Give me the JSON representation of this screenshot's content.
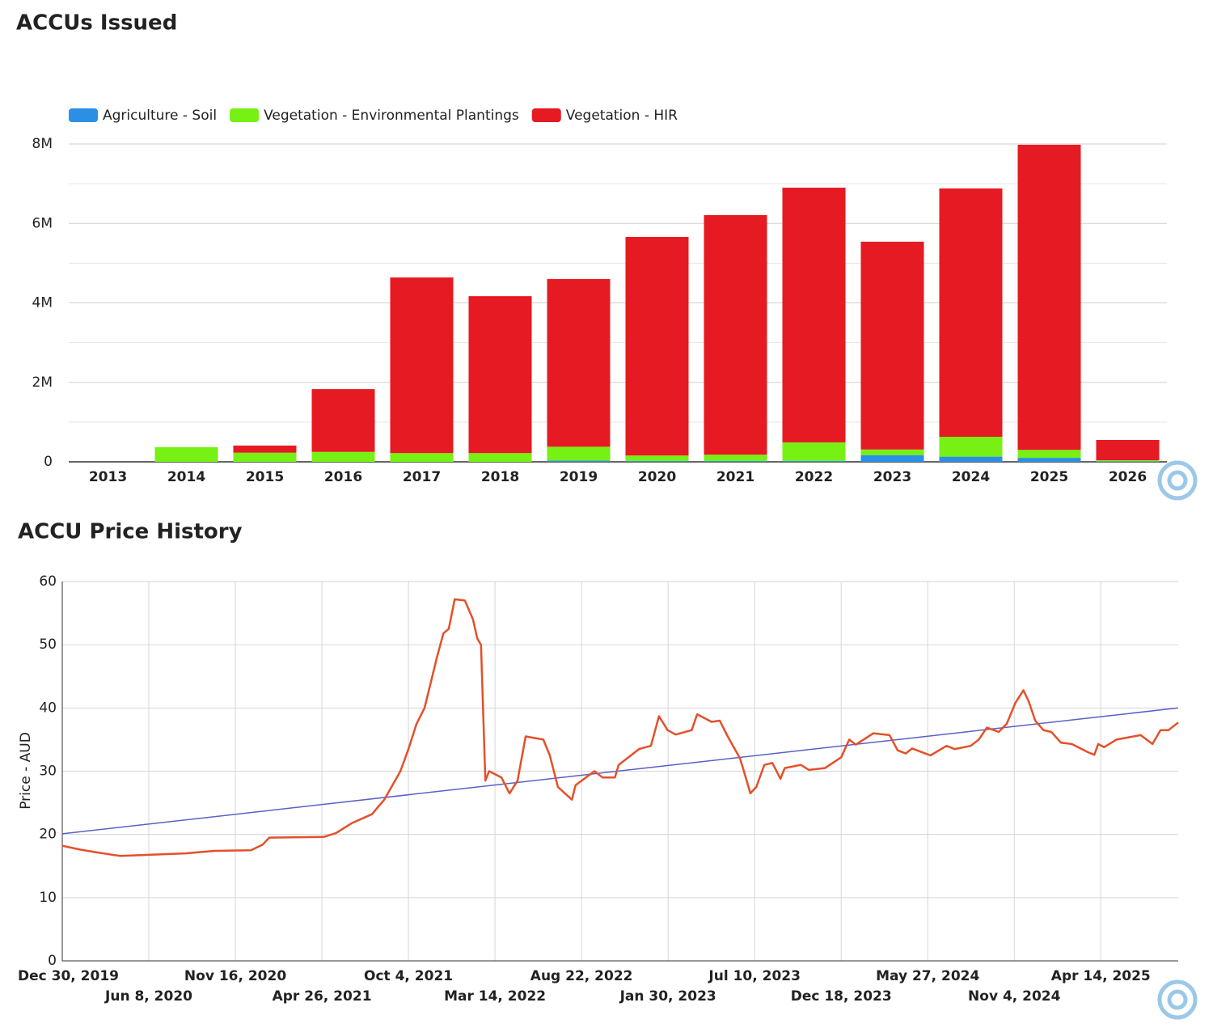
{
  "chart_data": [
    {
      "type": "bar",
      "stacked": true,
      "title": "ACCUs Issued",
      "categories": [
        "2013",
        "2014",
        "2015",
        "2016",
        "2017",
        "2018",
        "2019",
        "2020",
        "2021",
        "2022",
        "2023",
        "2024",
        "2025",
        "2026"
      ],
      "series": [
        {
          "name": "Agriculture - Soil",
          "color": "#2b8fe6",
          "values": [
            0,
            0,
            0,
            0,
            0,
            0,
            30000,
            20000,
            20000,
            20000,
            170000,
            130000,
            100000,
            10000
          ]
        },
        {
          "name": "Vegetation - Environmental Plantings",
          "color": "#77f014",
          "values": [
            0,
            370000,
            230000,
            250000,
            220000,
            220000,
            350000,
            140000,
            160000,
            470000,
            140000,
            500000,
            200000,
            30000
          ]
        },
        {
          "name": "Vegetation - HIR",
          "color": "#e61a22",
          "values": [
            0,
            0,
            180000,
            1580000,
            4420000,
            3950000,
            4220000,
            5500000,
            6030000,
            6410000,
            5230000,
            6250000,
            7680000,
            510000
          ]
        }
      ],
      "ylim": [
        0,
        8000000
      ],
      "yticks": [
        0,
        {
          "value": 2000000,
          "label": "2M"
        },
        {
          "value": 4000000,
          "label": "4M"
        },
        {
          "value": 6000000,
          "label": "6M"
        },
        {
          "value": 8000000,
          "label": "8M"
        }
      ],
      "grid": true,
      "legend": "top-left"
    },
    {
      "type": "line",
      "title": "ACCU Price History",
      "ylabel": "Price - AUD",
      "x": [
        "2019-12-30",
        "2020-02-01",
        "2020-03-01",
        "2020-04-15",
        "2020-08-15",
        "2020-10-08",
        "2020-12-15",
        "2021-01-06",
        "2021-01-18",
        "2021-04-29",
        "2021-05-22",
        "2021-06-21",
        "2021-07-28",
        "2021-08-20",
        "2021-09-19",
        "2021-10-04",
        "2021-10-19",
        "2021-11-03",
        "2021-11-26",
        "2021-12-08",
        "2021-12-18",
        "2021-12-29",
        "2022-01-17",
        "2022-02-01",
        "2022-02-09",
        "2022-02-16",
        "2022-02-24",
        "2022-03-03",
        "2022-03-26",
        "2022-04-10",
        "2022-04-25",
        "2022-05-10",
        "2022-06-12",
        "2022-06-24",
        "2022-07-09",
        "2022-08-04",
        "2022-08-11",
        "2022-09-15",
        "2022-09-30",
        "2022-10-23",
        "2022-10-30",
        "2022-12-07",
        "2022-12-29",
        "2023-01-13",
        "2023-01-29",
        "2023-02-13",
        "2023-03-15",
        "2023-03-25",
        "2023-04-21",
        "2023-05-06",
        "2023-05-21",
        "2023-06-13",
        "2023-06-20",
        "2023-07-02",
        "2023-07-13",
        "2023-07-28",
        "2023-08-12",
        "2023-08-27",
        "2023-09-04",
        "2023-10-04",
        "2023-10-19",
        "2023-11-18",
        "2023-12-18",
        "2024-01-02",
        "2024-01-14",
        "2024-02-16",
        "2024-03-17",
        "2024-04-01",
        "2024-04-16",
        "2024-04-28",
        "2024-06-01",
        "2024-07-01",
        "2024-07-16",
        "2024-08-15",
        "2024-08-30",
        "2024-09-14",
        "2024-10-06",
        "2024-10-21",
        "2024-11-06",
        "2024-11-21",
        "2024-12-01",
        "2024-12-13",
        "2024-12-28",
        "2025-01-12",
        "2025-01-30",
        "2025-02-19",
        "2025-03-21",
        "2025-04-02",
        "2025-04-09",
        "2025-04-20",
        "2025-05-13",
        "2025-06-27",
        "2025-07-19",
        "2025-08-03",
        "2025-08-18",
        "2025-09-05"
      ],
      "series": [
        {
          "color": "#e4502a",
          "values": [
            18.2,
            17.6,
            17.2,
            16.6,
            17.0,
            17.4,
            17.5,
            18.4,
            19.5,
            19.6,
            20.2,
            21.8,
            23.2,
            25.5,
            30,
            33.5,
            37.5,
            40,
            48,
            51.8,
            52.5,
            57.2,
            57,
            54,
            51,
            50,
            28.5,
            30,
            29,
            26.5,
            28.5,
            35.5,
            35,
            32.5,
            27.5,
            25.5,
            27.8,
            30,
            29,
            29,
            31,
            33.5,
            34,
            38.7,
            36.5,
            35.8,
            36.5,
            39,
            37.8,
            38,
            35.5,
            32,
            30,
            26.5,
            27.5,
            31,
            31.3,
            28.8,
            30.5,
            31,
            30.2,
            30.5,
            32.2,
            35,
            34.2,
            36,
            35.7,
            33.3,
            32.8,
            33.6,
            32.5,
            34,
            33.5,
            34,
            35,
            36.9,
            36.2,
            37.5,
            40.8,
            42.8,
            41,
            38,
            36.5,
            36.2,
            34.5,
            34.3,
            33,
            32.6,
            34.3,
            33.8,
            35,
            35.7,
            34.3,
            36.5,
            36.5,
            37.7
          ]
        }
      ],
      "trendline": {
        "color": "#5a5fc8",
        "x": [
          "2019-12-30",
          "2025-09-05"
        ],
        "values": [
          20.1,
          40
        ]
      },
      "xlim": [
        "2019-12-30",
        "2025-09-05"
      ],
      "xticks": [
        {
          "value": "2019-12-30",
          "label": "Dec 30, 2019"
        },
        {
          "value": "2020-06-08",
          "label": "Jun 8, 2020"
        },
        {
          "value": "2020-11-16",
          "label": "Nov 16, 2020"
        },
        {
          "value": "2021-04-26",
          "label": "Apr 26, 2021"
        },
        {
          "value": "2021-10-04",
          "label": "Oct 4, 2021"
        },
        {
          "value": "2022-03-14",
          "label": "Mar 14, 2022"
        },
        {
          "value": "2022-08-22",
          "label": "Aug 22, 2022"
        },
        {
          "value": "2023-01-30",
          "label": "Jan 30, 2023"
        },
        {
          "value": "2023-07-10",
          "label": "Jul 10, 2023"
        },
        {
          "value": "2023-12-18",
          "label": "Dec 18, 2023"
        },
        {
          "value": "2024-05-27",
          "label": "May 27, 2024"
        },
        {
          "value": "2024-11-04",
          "label": "Nov 4, 2024"
        },
        {
          "value": "2025-04-14",
          "label": "Apr 14, 2025"
        }
      ],
      "ylim": [
        0,
        60
      ],
      "yticks": [
        0,
        10,
        20,
        30,
        40,
        50,
        60
      ],
      "grid": true
    }
  ]
}
